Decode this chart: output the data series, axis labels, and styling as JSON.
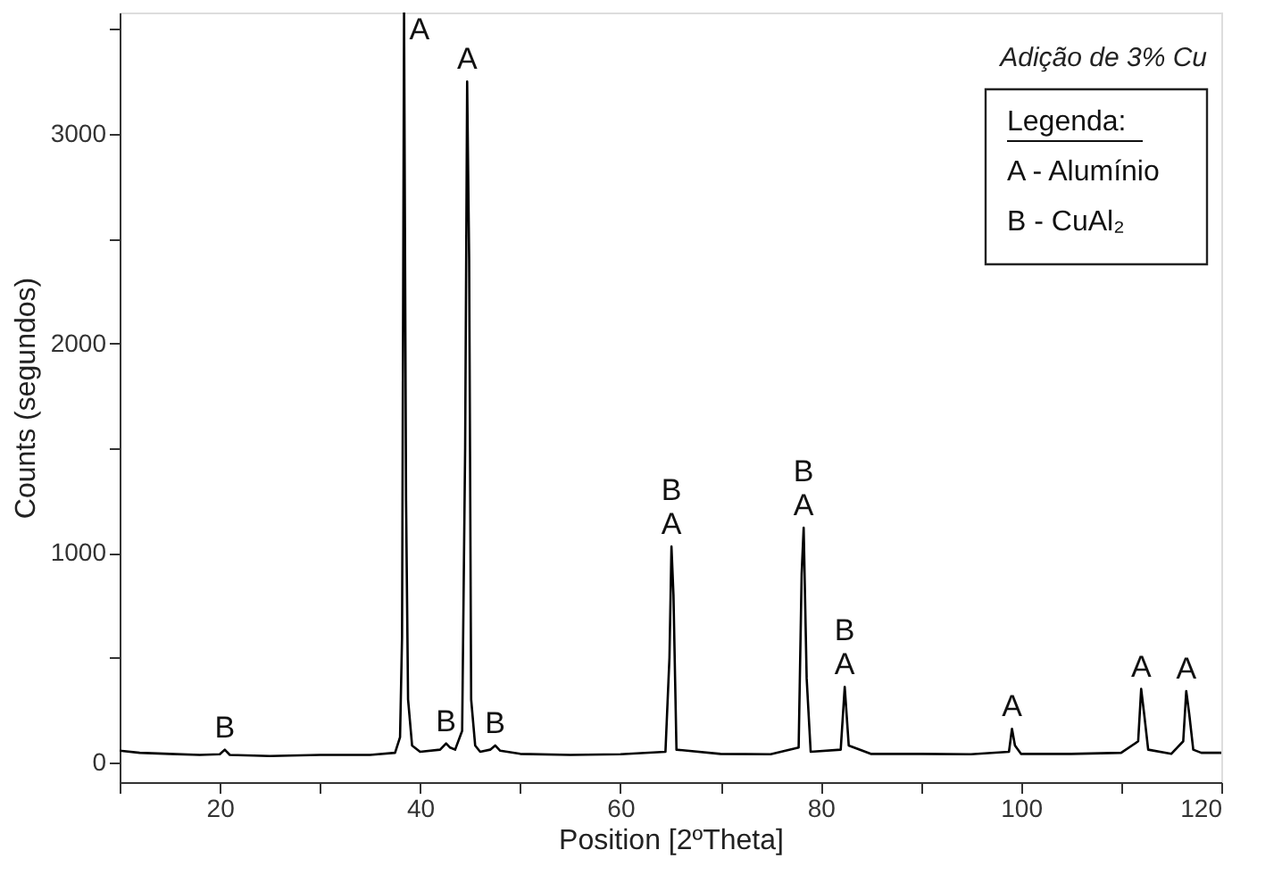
{
  "chart_data": {
    "type": "line",
    "xlabel": "Position [2ºTheta]",
    "ylabel": "Counts (segundos)",
    "xlim": [
      10,
      120
    ],
    "ylim": [
      -95,
      3580
    ],
    "xticks": [
      {
        "value": 10,
        "label": null
      },
      20,
      {
        "value": 30,
        "label": null
      },
      40,
      {
        "value": 50,
        "label": null
      },
      60,
      {
        "value": 70,
        "label": null
      },
      80,
      {
        "value": 90,
        "label": null
      },
      100,
      {
        "value": 110,
        "label": null
      },
      120
    ],
    "yticks": [
      0,
      {
        "value": 500,
        "label": null
      },
      1000,
      {
        "value": 1500,
        "label": null
      },
      2000,
      {
        "value": 2500,
        "label": null
      },
      3000,
      {
        "value": 3500,
        "label": null
      }
    ],
    "grid": false,
    "marker": "none",
    "line_style": "solid",
    "series": [
      {
        "color": "#000000",
        "x": [
          10,
          12,
          15,
          18,
          20,
          20.5,
          21,
          25,
          30,
          35,
          37.5,
          38.0,
          38.2,
          38.4,
          38.6,
          38.8,
          39.2,
          40,
          42,
          42.6,
          43,
          43.5,
          44.2,
          44.5,
          44.7,
          44.9,
          45.1,
          45.5,
          46,
          47,
          47.5,
          48,
          50,
          55,
          60,
          64.5,
          64.9,
          65.1,
          65.3,
          65.6,
          70,
          75,
          77.8,
          78.1,
          78.3,
          78.6,
          79,
          82,
          82.4,
          82.8,
          85,
          90,
          95,
          98.8,
          99.1,
          99.4,
          100,
          105,
          110,
          111.7,
          112.0,
          112.3,
          112.7,
          115,
          116.2,
          116.5,
          116.8,
          117.2,
          118,
          120
        ],
        "values": [
          55,
          45,
          40,
          35,
          38,
          60,
          35,
          30,
          35,
          35,
          45,
          120,
          600,
          3580,
          1250,
          300,
          80,
          50,
          60,
          90,
          70,
          60,
          150,
          1500,
          3250,
          2400,
          300,
          80,
          50,
          60,
          80,
          55,
          40,
          35,
          38,
          50,
          500,
          1030,
          800,
          60,
          40,
          38,
          70,
          900,
          1120,
          400,
          50,
          60,
          360,
          80,
          40,
          40,
          38,
          50,
          160,
          80,
          40,
          40,
          45,
          100,
          350,
          230,
          60,
          40,
          100,
          340,
          230,
          60,
          45,
          45
        ]
      }
    ],
    "annotations": [
      {
        "text": "A",
        "x": 38.4,
        "y": 3580
      },
      {
        "text": "A",
        "x": 44.7,
        "y": 3250
      },
      {
        "text": "B",
        "x": 20.5,
        "y": 60
      },
      {
        "text": "B",
        "x": 42.6,
        "y": 90
      },
      {
        "text": "B",
        "x": 47.5,
        "y": 80
      },
      {
        "text": "A",
        "x": 65.1,
        "y": 1030
      },
      {
        "text": "B",
        "x": 65.1,
        "y": 1030
      },
      {
        "text": "A",
        "x": 78.3,
        "y": 1120
      },
      {
        "text": "B",
        "x": 78.3,
        "y": 1120
      },
      {
        "text": "A",
        "x": 82.4,
        "y": 360
      },
      {
        "text": "B",
        "x": 82.4,
        "y": 360
      },
      {
        "text": "A",
        "x": 99.1,
        "y": 160
      },
      {
        "text": "A",
        "x": 112.0,
        "y": 350
      },
      {
        "text": "A",
        "x": 116.5,
        "y": 340
      },
      "Adição de 3% Cu",
      "Legenda:",
      "A - Alumínio",
      "B - CuAl₂"
    ]
  }
}
